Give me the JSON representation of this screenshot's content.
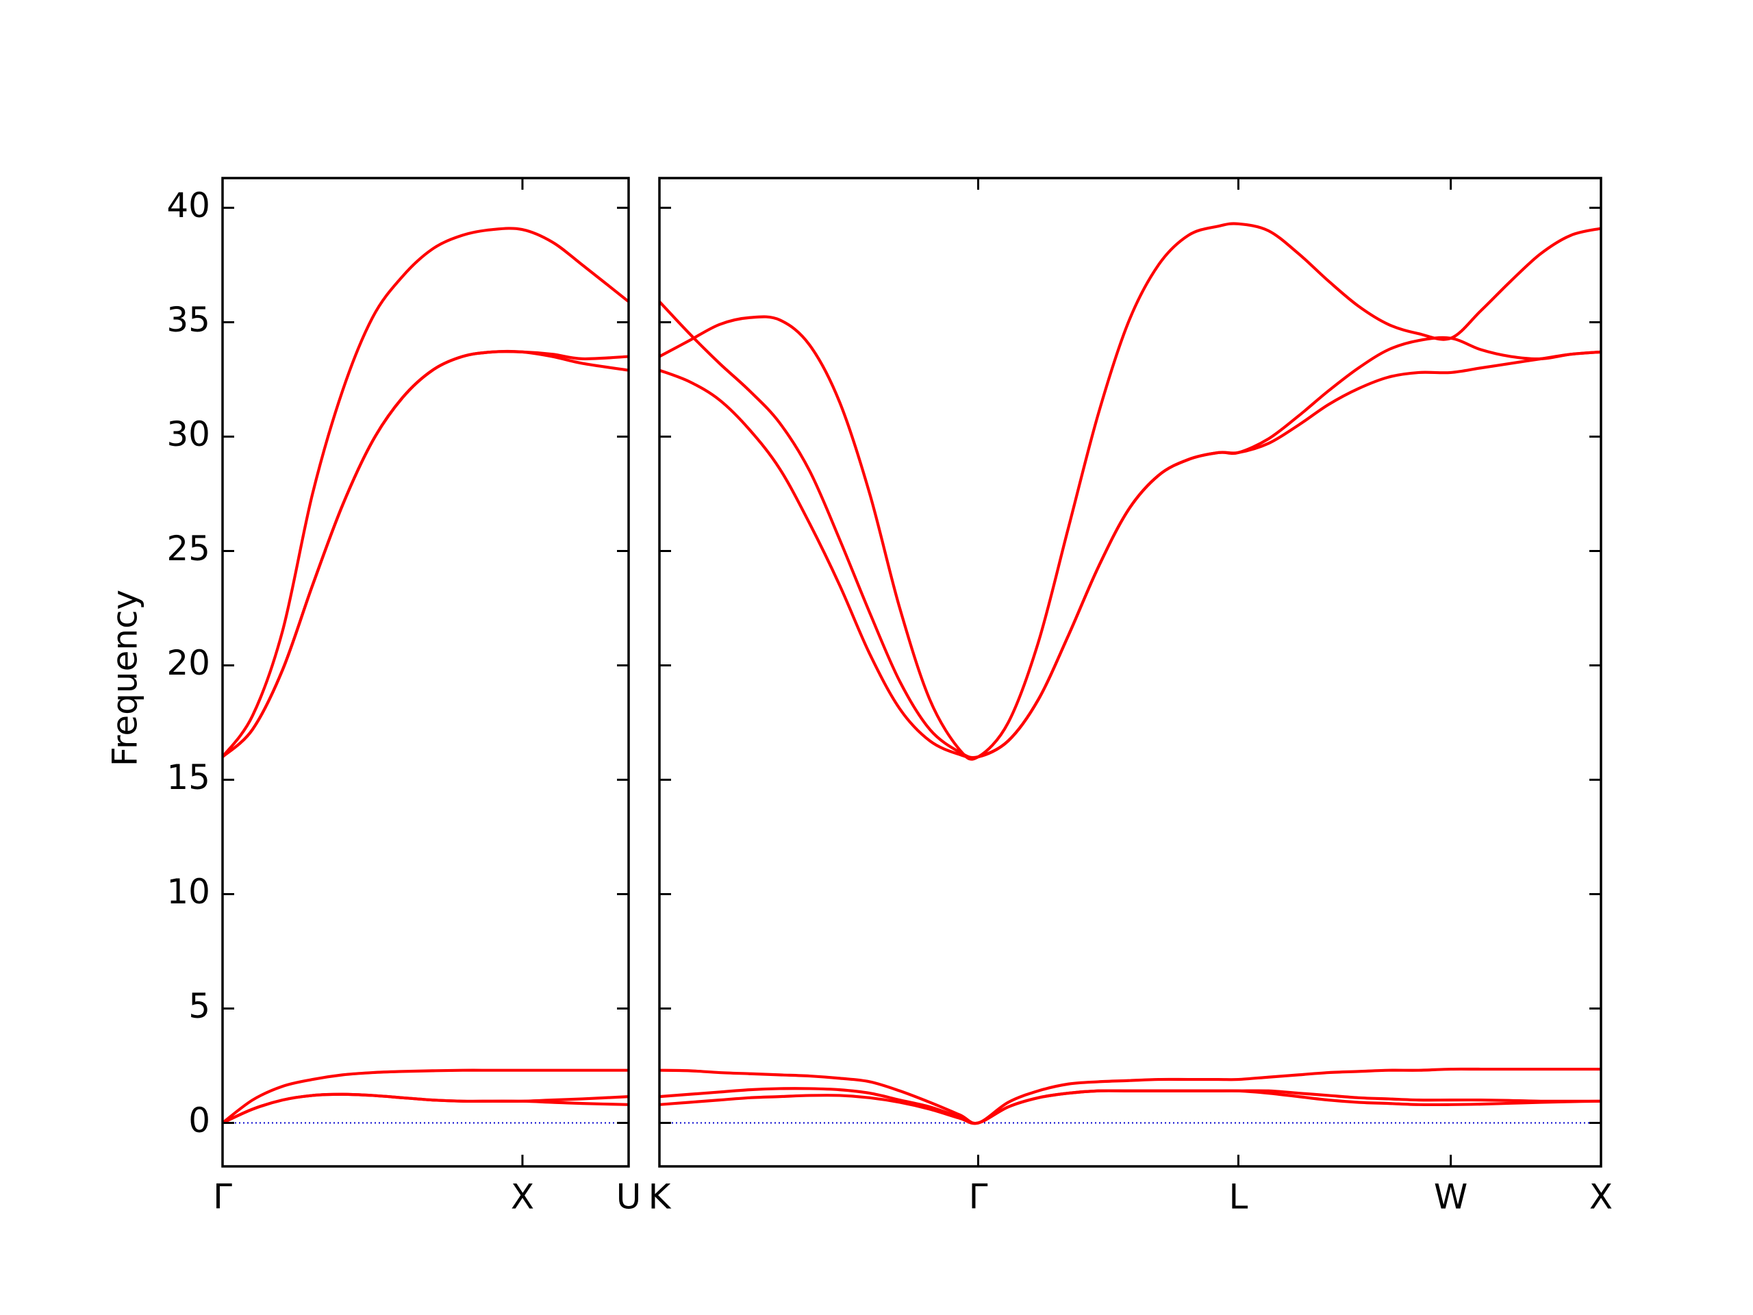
{
  "chart_data": [
    {
      "type": "line",
      "ylabel": "Frequency",
      "x": [
        0,
        0.1,
        0.2,
        0.3,
        0.4,
        0.5,
        0.6,
        0.7,
        0.8,
        0.9,
        1.0,
        1.1,
        1.2,
        1.354
      ],
      "xlim": [
        0,
        1.354
      ],
      "xticks": [
        {
          "value": 0,
          "label": "Γ"
        },
        {
          "value": 1.0,
          "label": "X"
        },
        {
          "value": 1.354,
          "label": "U"
        }
      ],
      "ylim": [
        -1.9,
        41.3
      ],
      "yticks": [
        0,
        5,
        10,
        15,
        20,
        25,
        30,
        35,
        40
      ],
      "ytick_labels": true,
      "zero_line": 0,
      "zero_line_color": "#0000cc",
      "series": [
        {
          "color": "#ff0000",
          "values": [
            0,
            1.0,
            1.6,
            1.9,
            2.1,
            2.2,
            2.25,
            2.28,
            2.3,
            2.3,
            2.3,
            2.3,
            2.3,
            2.3
          ]
        },
        {
          "color": "#ff0000",
          "values": [
            0,
            0.6,
            1.0,
            1.2,
            1.25,
            1.2,
            1.1,
            1.0,
            0.95,
            0.95,
            0.95,
            1.0,
            1.05,
            1.15
          ]
        },
        {
          "color": "#ff0000",
          "values": [
            0,
            0.6,
            1.0,
            1.2,
            1.25,
            1.2,
            1.1,
            1.0,
            0.95,
            0.95,
            0.95,
            0.9,
            0.85,
            0.8
          ]
        },
        {
          "color": "#ff0000",
          "values": [
            16,
            17.2,
            19.8,
            23.5,
            27,
            29.8,
            31.7,
            32.9,
            33.5,
            33.7,
            33.7,
            33.6,
            33.4,
            33.5
          ]
        },
        {
          "color": "#ff0000",
          "values": [
            16,
            17.2,
            19.8,
            23.5,
            27,
            29.8,
            31.7,
            32.9,
            33.5,
            33.7,
            33.7,
            33.5,
            33.2,
            32.9
          ]
        },
        {
          "color": "#ff0000",
          "values": [
            16,
            17.8,
            21.5,
            27.5,
            32,
            35.2,
            37,
            38.2,
            38.8,
            39.05,
            39.05,
            38.5,
            37.5,
            35.9
          ]
        }
      ]
    },
    {
      "type": "line",
      "x": [
        1.354,
        1.454,
        1.554,
        1.654,
        1.754,
        1.854,
        1.954,
        2.054,
        2.154,
        2.254,
        2.354,
        2.415,
        2.515,
        2.615,
        2.715,
        2.815,
        2.915,
        3.015,
        3.115,
        3.215,
        3.281,
        3.381,
        3.481,
        3.581,
        3.681,
        3.781,
        3.881,
        3.988,
        4.088,
        4.188,
        4.288,
        4.388,
        4.488
      ],
      "xlim": [
        1.354,
        4.488
      ],
      "xticks": [
        {
          "value": 1.354,
          "label": "K"
        },
        {
          "value": 2.415,
          "label": "Γ"
        },
        {
          "value": 3.281,
          "label": "L"
        },
        {
          "value": 3.988,
          "label": "W"
        },
        {
          "value": 4.488,
          "label": "X"
        }
      ],
      "ylim": [
        -1.9,
        41.3
      ],
      "yticks": [
        0,
        5,
        10,
        15,
        20,
        25,
        30,
        35,
        40
      ],
      "ytick_labels": false,
      "zero_line": 0,
      "zero_line_color": "#0000cc",
      "series": [
        {
          "color": "#ff0000",
          "values": [
            2.3,
            2.28,
            2.2,
            2.15,
            2.1,
            2.05,
            1.95,
            1.8,
            1.4,
            0.9,
            0.35,
            0,
            0.9,
            1.4,
            1.7,
            1.8,
            1.85,
            1.9,
            1.9,
            1.9,
            1.9,
            2.0,
            2.1,
            2.2,
            2.25,
            2.3,
            2.3,
            2.35,
            2.35,
            2.35,
            2.35,
            2.35,
            2.35
          ]
        },
        {
          "color": "#ff0000",
          "values": [
            1.15,
            1.25,
            1.35,
            1.45,
            1.5,
            1.5,
            1.45,
            1.3,
            1.0,
            0.7,
            0.25,
            0,
            0.7,
            1.1,
            1.3,
            1.4,
            1.4,
            1.4,
            1.4,
            1.4,
            1.4,
            1.4,
            1.3,
            1.2,
            1.1,
            1.05,
            1.0,
            1.0,
            1.0,
            0.98,
            0.95,
            0.95,
            0.95
          ]
        },
        {
          "color": "#ff0000",
          "values": [
            0.8,
            0.9,
            1.0,
            1.1,
            1.15,
            1.2,
            1.2,
            1.1,
            0.9,
            0.6,
            0.2,
            0,
            0.7,
            1.1,
            1.3,
            1.4,
            1.4,
            1.4,
            1.4,
            1.4,
            1.4,
            1.3,
            1.15,
            1.0,
            0.9,
            0.85,
            0.8,
            0.8,
            0.82,
            0.86,
            0.9,
            0.93,
            0.95
          ]
        },
        {
          "color": "#ff0000",
          "values": [
            32.9,
            32.4,
            31.6,
            30.3,
            28.6,
            26.2,
            23.5,
            20.5,
            18.1,
            16.7,
            16.1,
            16,
            16.7,
            18.5,
            21.3,
            24.3,
            26.8,
            28.3,
            29.0,
            29.3,
            29.3,
            29.7,
            30.5,
            31.4,
            32.1,
            32.6,
            32.8,
            32.8,
            33.0,
            33.2,
            33.4,
            33.6,
            33.7
          ]
        },
        {
          "color": "#ff0000",
          "values": [
            35.9,
            34.5,
            33.2,
            32.0,
            30.6,
            28.5,
            25.5,
            22.3,
            19.3,
            17.2,
            16.2,
            16,
            16.7,
            18.5,
            21.3,
            24.3,
            26.8,
            28.3,
            29.0,
            29.3,
            29.3,
            29.9,
            30.9,
            32.0,
            33.0,
            33.8,
            34.2,
            34.3,
            33.8,
            33.5,
            33.4,
            33.6,
            33.7
          ]
        },
        {
          "color": "#ff0000",
          "values": [
            33.5,
            34.2,
            34.9,
            35.2,
            35.1,
            34.0,
            31.5,
            27.5,
            22.5,
            18.5,
            16.3,
            16,
            17.5,
            21,
            26,
            31,
            35,
            37.5,
            38.8,
            39.2,
            39.3,
            39.0,
            38.0,
            36.8,
            35.7,
            34.9,
            34.5,
            34.3,
            35.5,
            36.8,
            38.0,
            38.8,
            39.1
          ]
        }
      ]
    }
  ]
}
